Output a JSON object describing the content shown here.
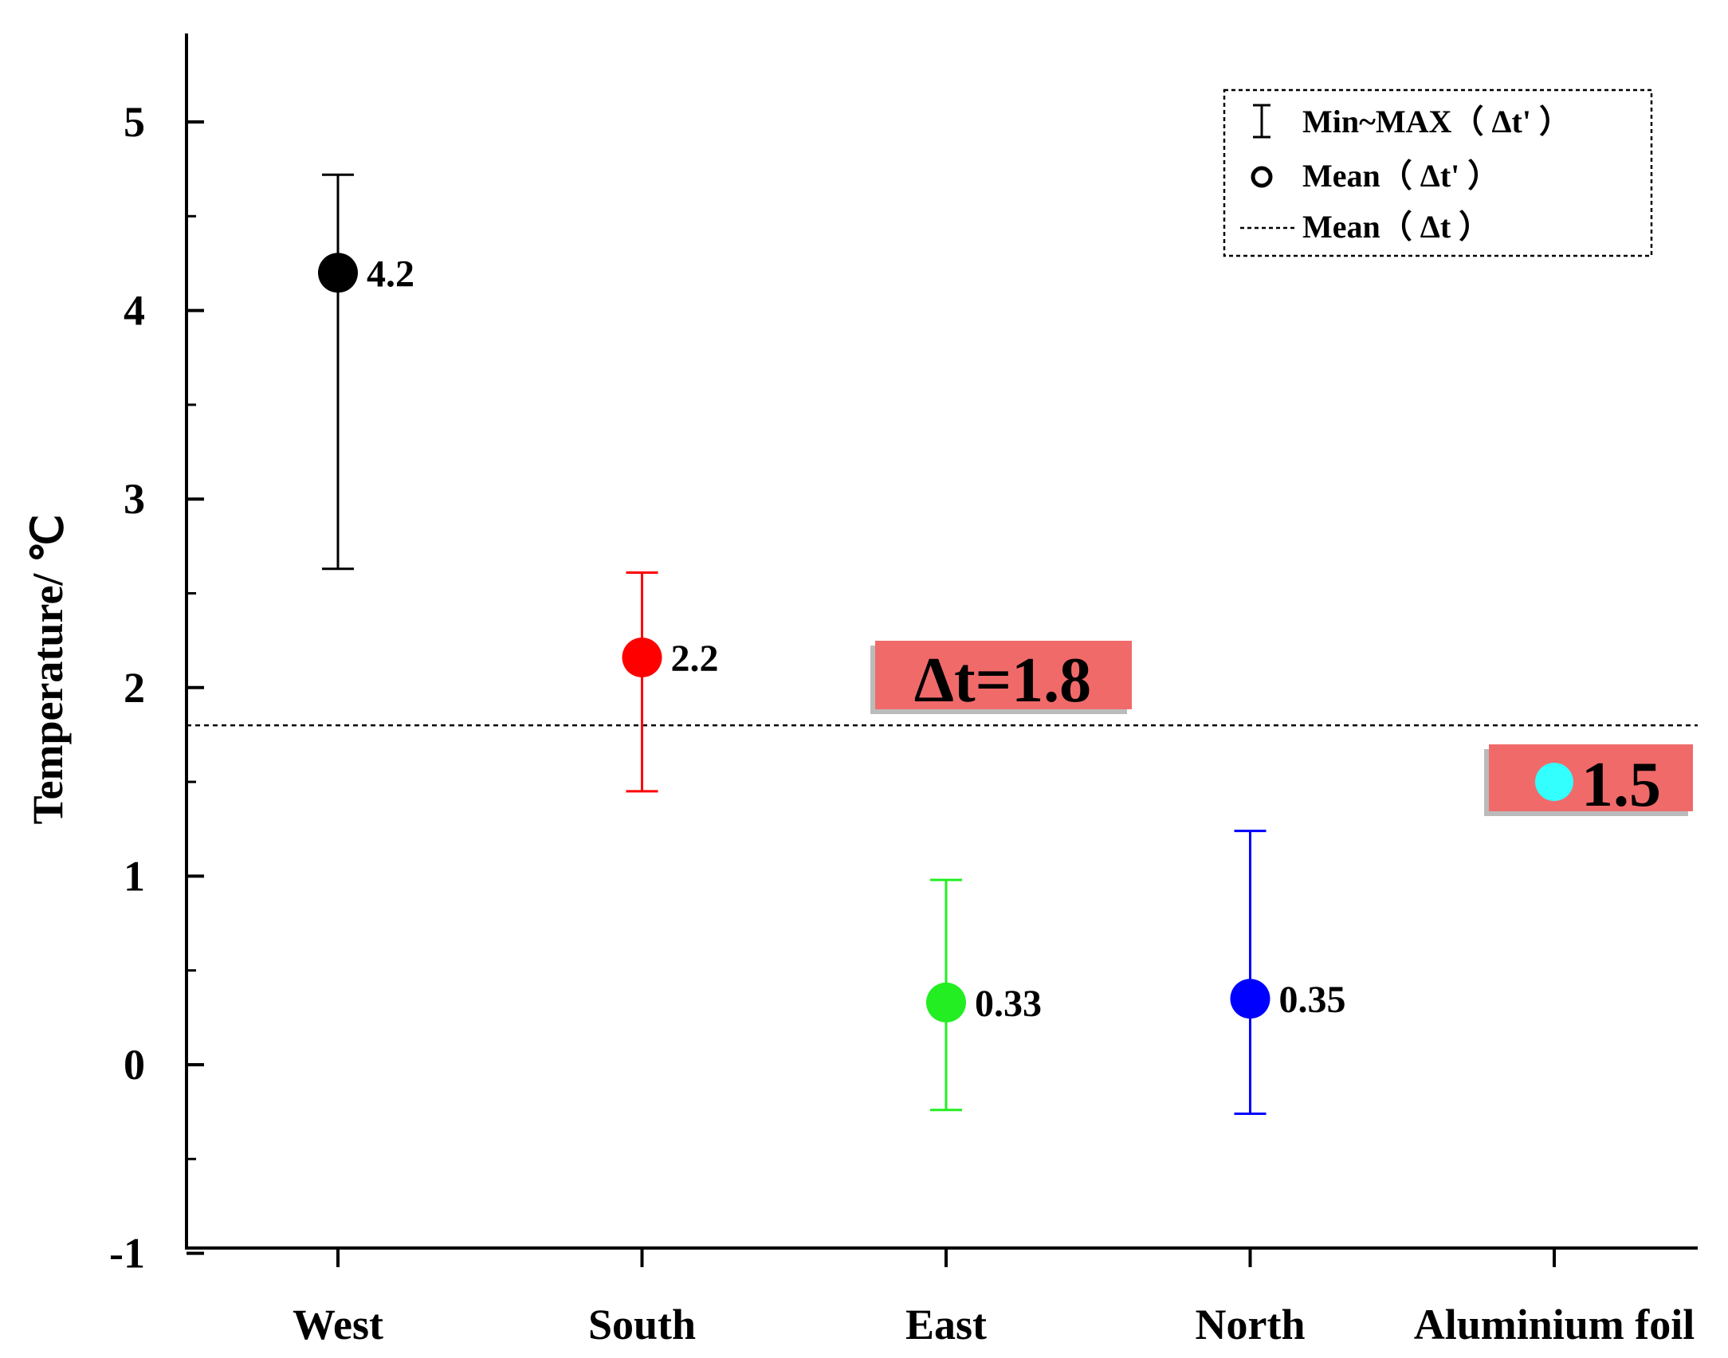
{
  "chart_data": {
    "type": "scatter",
    "title": "",
    "xlabel": "",
    "ylabel": "Temperature/ ℃",
    "ylim": [
      -1,
      5.5
    ],
    "yticks": [
      -1,
      0,
      1,
      2,
      3,
      4,
      5
    ],
    "grid": false,
    "categories": [
      "West",
      "South",
      "East",
      "North",
      "Aluminium foil"
    ],
    "points": [
      {
        "category": "West",
        "mean": 4.2,
        "min": 2.63,
        "max": 4.72,
        "label": "4.2",
        "color": "#000000"
      },
      {
        "category": "South",
        "mean": 2.16,
        "min": 1.45,
        "max": 2.61,
        "label": "2.2",
        "color": "#ff0000"
      },
      {
        "category": "East",
        "mean": 0.33,
        "min": -0.24,
        "max": 0.98,
        "label": "0.33",
        "color": "#22ee22"
      },
      {
        "category": "North",
        "mean": 0.35,
        "min": -0.26,
        "max": 1.24,
        "label": "0.35",
        "color": "#0000ff"
      },
      {
        "category": "Aluminium foil",
        "mean": 1.5,
        "label": "1.5",
        "color": "#33ffff"
      }
    ],
    "reference_line": {
      "value": 1.8,
      "label": "Δt=1.8",
      "style": "dotted"
    },
    "highlight_color": "#f06a6a",
    "legend": {
      "position": "top-right",
      "entries": [
        {
          "symbol": "errorbar",
          "text": "Min~MAX（ Δt' ）"
        },
        {
          "symbol": "circle",
          "text": "Mean（ Δt' ）"
        },
        {
          "symbol": "dotted-line",
          "text": "Mean（ Δt ）"
        }
      ]
    }
  }
}
